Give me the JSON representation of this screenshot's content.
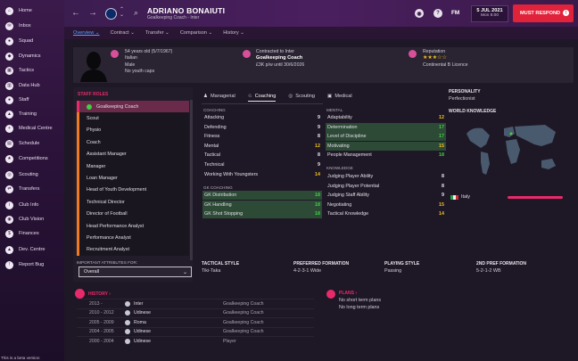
{
  "sidebar": {
    "items": [
      {
        "label": "Home",
        "icon": "home-icon",
        "glyph": "⌂"
      },
      {
        "label": "Inbox",
        "icon": "inbox-icon",
        "glyph": "✉"
      },
      {
        "label": "Squad",
        "icon": "squad-icon",
        "glyph": "●"
      },
      {
        "label": "Dynamics",
        "icon": "dynamics-icon",
        "glyph": "◆"
      },
      {
        "label": "Tactics",
        "icon": "tactics-icon",
        "glyph": "▦"
      },
      {
        "label": "Data Hub",
        "icon": "data-hub-icon",
        "glyph": "▥"
      },
      {
        "label": "Staff",
        "icon": "staff-icon",
        "glyph": "●"
      },
      {
        "label": "Training",
        "icon": "training-icon",
        "glyph": "▲"
      },
      {
        "label": "Medical Centre",
        "icon": "medical-icon",
        "glyph": "+"
      },
      {
        "label": "Schedule",
        "icon": "schedule-icon",
        "glyph": "▤"
      },
      {
        "label": "Competitions",
        "icon": "competitions-icon",
        "glyph": "★"
      },
      {
        "label": "Scouting",
        "icon": "scouting-icon",
        "glyph": "◎"
      },
      {
        "label": "Transfers",
        "icon": "transfers-icon",
        "glyph": "⇄"
      },
      {
        "label": "Club Info",
        "icon": "club-info-icon",
        "glyph": "i"
      },
      {
        "label": "Club Vision",
        "icon": "club-vision-icon",
        "glyph": "◉"
      },
      {
        "label": "Finances",
        "icon": "finances-icon",
        "glyph": "$"
      },
      {
        "label": "Dev. Centre",
        "icon": "dev-centre-icon",
        "glyph": "▲"
      },
      {
        "label": "Report Bug",
        "icon": "report-bug-icon",
        "glyph": "!"
      }
    ],
    "beta_text": "This is a beta version"
  },
  "topbar": {
    "name": "ADRIANO BONAIUTI",
    "subtitle": "Goalkeeping Coach - Inter",
    "fm_label": "FM",
    "date": "5 JUL 2021",
    "day_time": "Mon 8:00",
    "respond_label": "MUST RESPOND"
  },
  "subnav": {
    "items": [
      "Overview ⌄",
      "Contract ⌄",
      "Transfer ⌄",
      "Comparison ⌄",
      "History ⌄"
    ]
  },
  "header": {
    "age_line": "54 years old (5/7/1967)",
    "nationality": "Italian",
    "gender": "Male",
    "caps": "No youth caps",
    "contract_line": "Contracted to Inter",
    "role": "Goalkeeping Coach",
    "wage": "£3K p/w until 30/6/2026",
    "reputation_label": "Reputation",
    "licence": "Continental B Licence",
    "reputation_stars": "★★★☆☆"
  },
  "staff_roles": {
    "title": "STAFF ROLES",
    "roles": [
      "Goalkeeping Coach",
      "Scout",
      "Physio",
      "Coach",
      "Assistant Manager",
      "Manager",
      "Loan Manager",
      "Head of Youth Development",
      "Technical Director",
      "Director of Football",
      "Head Performance Analyst",
      "Performance Analyst",
      "Recruitment Analyst"
    ],
    "important_label": "IMPORTANT ATTRIBUTES FOR:",
    "dropdown_value": "Overall"
  },
  "tabs": [
    "Managerial",
    "Coaching",
    "Scouting",
    "Medical"
  ],
  "coaching": {
    "title": "COACHING",
    "attrs": [
      {
        "name": "Attacking",
        "value": "9",
        "c": "w"
      },
      {
        "name": "Defending",
        "value": "9",
        "c": "w"
      },
      {
        "name": "Fitness",
        "value": "8",
        "c": "w"
      },
      {
        "name": "Mental",
        "value": "12",
        "c": "y"
      },
      {
        "name": "Tactical",
        "value": "8",
        "c": "w"
      },
      {
        "name": "Technical",
        "value": "9",
        "c": "w"
      },
      {
        "name": "Working With Youngsters",
        "value": "14",
        "c": "y"
      }
    ]
  },
  "gk_coaching": {
    "title": "GK COACHING",
    "attrs": [
      {
        "name": "GK Distribution",
        "value": "18",
        "c": "g"
      },
      {
        "name": "GK Handling",
        "value": "18",
        "c": "g"
      },
      {
        "name": "GK Shot Stopping",
        "value": "18",
        "c": "g"
      }
    ]
  },
  "mental": {
    "title": "MENTAL",
    "attrs": [
      {
        "name": "Adaptability",
        "value": "12",
        "c": "y"
      },
      {
        "name": "Determination",
        "value": "17",
        "c": "g"
      },
      {
        "name": "Level of Discipline",
        "value": "17",
        "c": "g"
      },
      {
        "name": "Motivating",
        "value": "15",
        "c": "y"
      },
      {
        "name": "People Management",
        "value": "18",
        "c": "g"
      }
    ]
  },
  "knowledge": {
    "title": "KNOWLEDGE",
    "attrs": [
      {
        "name": "Judging Player Ability",
        "value": "8",
        "c": "w"
      },
      {
        "name": "Judging Player Potential",
        "value": "8",
        "c": "w"
      },
      {
        "name": "Judging Staff Ability",
        "value": "9",
        "c": "w"
      },
      {
        "name": "Negotiating",
        "value": "15",
        "c": "y"
      },
      {
        "name": "Tactical Knowledge",
        "value": "14",
        "c": "y"
      }
    ]
  },
  "personality": {
    "title": "PERSONALITY",
    "value": "Perfectionist",
    "world_knowledge": "WORLD KNOWLEDGE",
    "country": "Italy"
  },
  "bottom": {
    "tactical_style": "TACTICAL STYLE",
    "tactical_val": "Tiki-Taka",
    "pref_form": "PREFERRED FORMATION",
    "pref_form_val": "4-2-3-1 Wide",
    "playing_style": "PLAYING STYLE",
    "playing_val": "Passing",
    "second_form": "2ND PREF FORMATION",
    "second_form_val": "5-2-1-2 WB"
  },
  "history": {
    "title": "HISTORY ›",
    "rows": [
      {
        "years": "2013 -",
        "club": "Inter",
        "role": "Goalkeeping Coach"
      },
      {
        "years": "2010 - 2012",
        "club": "Udinese",
        "role": "Goalkeeping Coach"
      },
      {
        "years": "2005 - 2009",
        "club": "Roma",
        "role": "Goalkeeping Coach"
      },
      {
        "years": "2004 - 2005",
        "club": "Udinese",
        "role": "Goalkeeping Coach"
      },
      {
        "years": "2000 - 2004",
        "club": "Udinese",
        "role": "Player"
      }
    ]
  },
  "plans": {
    "title": "PLANS ›",
    "short": "No short term plans",
    "long": "No long term plans"
  }
}
